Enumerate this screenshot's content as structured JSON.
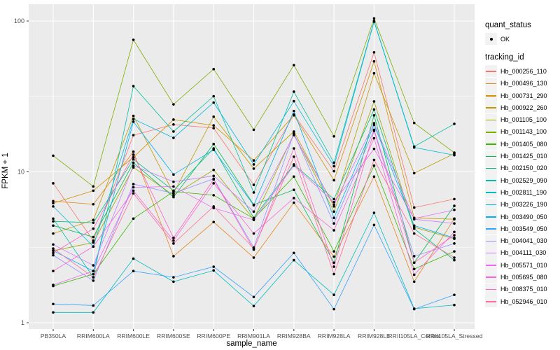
{
  "chart_data": {
    "type": "line",
    "title": "",
    "xlabel": "sample_name",
    "ylabel": "FPKM + 1",
    "y_scale": "log10",
    "y_ticks": [
      1,
      10,
      100
    ],
    "y_minor_ticks": [
      3.162,
      31.62
    ],
    "ylim": [
      1,
      125
    ],
    "grid": "on",
    "panel_background": "#EBEBEB",
    "grid_color": "#FFFFFF",
    "point_color": "#000000",
    "tick_label_color": "#4D4D4D",
    "categories": [
      "PB350LA",
      "RRIM600LA",
      "RRIM600LE",
      "RRIM600SE",
      "RRIM600PE",
      "RRIM901LA",
      "RRIM928BA",
      "RRIM928LA",
      "RRIM928LE",
      "RRII105LA_Control",
      "RRII105LA_Stressed"
    ],
    "series": [
      {
        "name": "Hb_000256_110",
        "color": "#F8766D",
        "values": [
          8.4,
          3.5,
          17.5,
          20.6,
          19.5,
          8.2,
          24.0,
          10.1,
          62.0,
          5.8,
          6.6
        ]
      },
      {
        "name": "Hb_000496_130",
        "color": "#E7861B",
        "values": [
          6.4,
          6.1,
          13.6,
          2.76,
          4.65,
          2.7,
          6.25,
          2.74,
          9.3,
          1.87,
          4.9
        ]
      },
      {
        "name": "Hb_000731_290",
        "color": "#D39200",
        "values": [
          6.2,
          7.5,
          12.5,
          22.2,
          20.3,
          11.9,
          23.7,
          8.8,
          54.0,
          4.95,
          4.85
        ]
      },
      {
        "name": "Hb_000922_260",
        "color": "#C09B00",
        "values": [
          3.9,
          4.8,
          23.5,
          7.2,
          23.2,
          10.5,
          18.5,
          5.9,
          45.0,
          9.8,
          13.2
        ]
      },
      {
        "name": "Hb_001105_100",
        "color": "#A3A500",
        "values": [
          3.0,
          3.4,
          10.7,
          7.0,
          10.3,
          4.85,
          17.8,
          5.45,
          29.3,
          4.3,
          3.6
        ]
      },
      {
        "name": "Hb_001143_100",
        "color": "#7CAE00",
        "values": [
          12.8,
          8.0,
          75.0,
          28.0,
          48.0,
          19.0,
          51.0,
          17.2,
          104.0,
          21.1,
          13.4
        ]
      },
      {
        "name": "Hb_001405_080",
        "color": "#39B600",
        "values": [
          1.75,
          2.1,
          4.9,
          7.4,
          7.0,
          4.9,
          9.3,
          2.97,
          11.0,
          2.27,
          2.97
        ]
      },
      {
        "name": "Hb_001425_010",
        "color": "#00BB4E",
        "values": [
          4.4,
          3.7,
          11.5,
          6.8,
          15.3,
          6.05,
          7.6,
          2.5,
          23.7,
          2.5,
          5.95
        ]
      },
      {
        "name": "Hb_002150_020",
        "color": "#00BF7D",
        "values": [
          4.7,
          4.6,
          12.1,
          7.5,
          14.3,
          4.95,
          11.2,
          6.6,
          25.9,
          4.2,
          2.6
        ]
      },
      {
        "name": "Hb_002529_090",
        "color": "#00C1A3",
        "values": [
          4.9,
          2.0,
          37.0,
          18.5,
          31.7,
          7.3,
          34.0,
          11.5,
          100.0,
          14.7,
          20.8
        ]
      },
      {
        "name": "Hb_002811_190",
        "color": "#00BFC4",
        "values": [
          1.17,
          1.17,
          2.66,
          1.87,
          2.22,
          1.29,
          2.6,
          1.53,
          5.35,
          1.24,
          1.31
        ]
      },
      {
        "name": "Hb_003226_190",
        "color": "#00BAE0",
        "values": [
          5.9,
          3.2,
          22.4,
          16.8,
          28.8,
          11.2,
          29.4,
          10.9,
          99.0,
          14.5,
          12.9
        ]
      },
      {
        "name": "Hb_003490_050",
        "color": "#00B0F6",
        "values": [
          3.0,
          2.2,
          21.5,
          9.6,
          14.0,
          6.0,
          25.3,
          4.95,
          20.5,
          4.4,
          3.65
        ]
      },
      {
        "name": "Hb_003549_050",
        "color": "#35A2FF",
        "values": [
          1.33,
          1.3,
          2.2,
          2.0,
          2.35,
          1.48,
          2.9,
          1.23,
          4.45,
          1.23,
          1.53
        ]
      },
      {
        "name": "Hb_004041_030",
        "color": "#9590FF",
        "values": [
          2.8,
          1.9,
          8.3,
          7.2,
          9.0,
          3.15,
          18.0,
          4.55,
          19.0,
          2.76,
          3.35
        ]
      },
      {
        "name": "Hb_004111_030",
        "color": "#C77CFF",
        "values": [
          3.3,
          2.4,
          11.0,
          8.6,
          9.4,
          5.45,
          17.5,
          6.05,
          21.0,
          4.85,
          4.55
        ]
      },
      {
        "name": "Hb_005571_010",
        "color": "#E76BF3",
        "values": [
          1.78,
          2.2,
          7.9,
          8.0,
          5.75,
          4.8,
          11.0,
          6.3,
          14.2,
          4.9,
          5.6
        ]
      },
      {
        "name": "Hb_005695_080",
        "color": "#FA62DB",
        "values": [
          2.2,
          3.2,
          7.5,
          3.5,
          8.4,
          3.9,
          6.7,
          4.1,
          16.7,
          2.08,
          4.0
        ]
      },
      {
        "name": "Hb_008375_010",
        "color": "#FF61C3",
        "values": [
          2.9,
          4.2,
          13.0,
          3.65,
          8.9,
          3.05,
          14.3,
          2.35,
          18.7,
          2.5,
          3.8
        ]
      },
      {
        "name": "Hb_052946_010",
        "color": "#FF6A98",
        "values": [
          3.1,
          2.0,
          7.2,
          3.35,
          5.9,
          3.1,
          12.6,
          2.1,
          12.0,
          3.9,
          2.7
        ]
      }
    ],
    "legend": {
      "position": "right",
      "quant_status_title": "quant_status",
      "quant_status_ok_label": "OK",
      "tracking_id_title": "tracking_id"
    }
  }
}
